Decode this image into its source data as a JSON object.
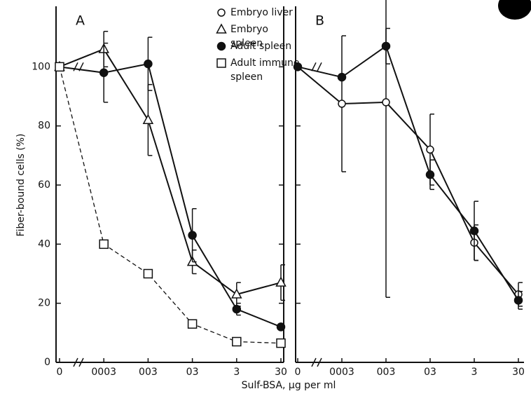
{
  "chart_data": [
    {
      "type": "line",
      "panel": "A",
      "ylabel": "Fiber-bound cells (%)",
      "xlabel": "Sulf-BSA, µg per ml",
      "categories": [
        "0",
        "0003",
        "003",
        "03",
        "3",
        "30"
      ],
      "ylim": [
        0,
        120
      ],
      "yticks": [
        0,
        20,
        40,
        60,
        80,
        100
      ],
      "legend": true,
      "series": [
        {
          "name": "Embryo liver",
          "marker": "open-circle",
          "values": [
            null,
            null,
            null,
            null,
            null,
            null
          ]
        },
        {
          "name": "Embryo spleen",
          "marker": "open-triangle",
          "values": [
            100,
            106,
            82,
            34,
            23,
            27
          ],
          "errors": [
            null,
            6,
            12,
            4,
            4,
            6
          ]
        },
        {
          "name": "Adult spleen",
          "marker": "filled-circle",
          "values": [
            100,
            98,
            101,
            43,
            18,
            12
          ],
          "errors": [
            null,
            10,
            9,
            9,
            2,
            null
          ]
        },
        {
          "name": "Adult immune spleen",
          "marker": "open-square",
          "dashed": true,
          "values": [
            100,
            40,
            30,
            13,
            7,
            6.5
          ]
        }
      ]
    },
    {
      "type": "line",
      "panel": "B",
      "categories": [
        "0",
        "0003",
        "003",
        "03",
        "3",
        "30"
      ],
      "ylim": [
        0,
        120
      ],
      "yticks": [
        0,
        20,
        40,
        60,
        80,
        100
      ],
      "legend": false,
      "series": [
        {
          "marker": "open-circle",
          "values": [
            100,
            87.5,
            88,
            72,
            40.5,
            23
          ],
          "errors": [
            null,
            23,
            66,
            12,
            6,
            4
          ]
        },
        {
          "marker": "filled-circle",
          "values": [
            100,
            96.5,
            107,
            63.5,
            44.5,
            21
          ],
          "errors": [
            null,
            null,
            6,
            5,
            10,
            3
          ]
        }
      ]
    }
  ]
}
